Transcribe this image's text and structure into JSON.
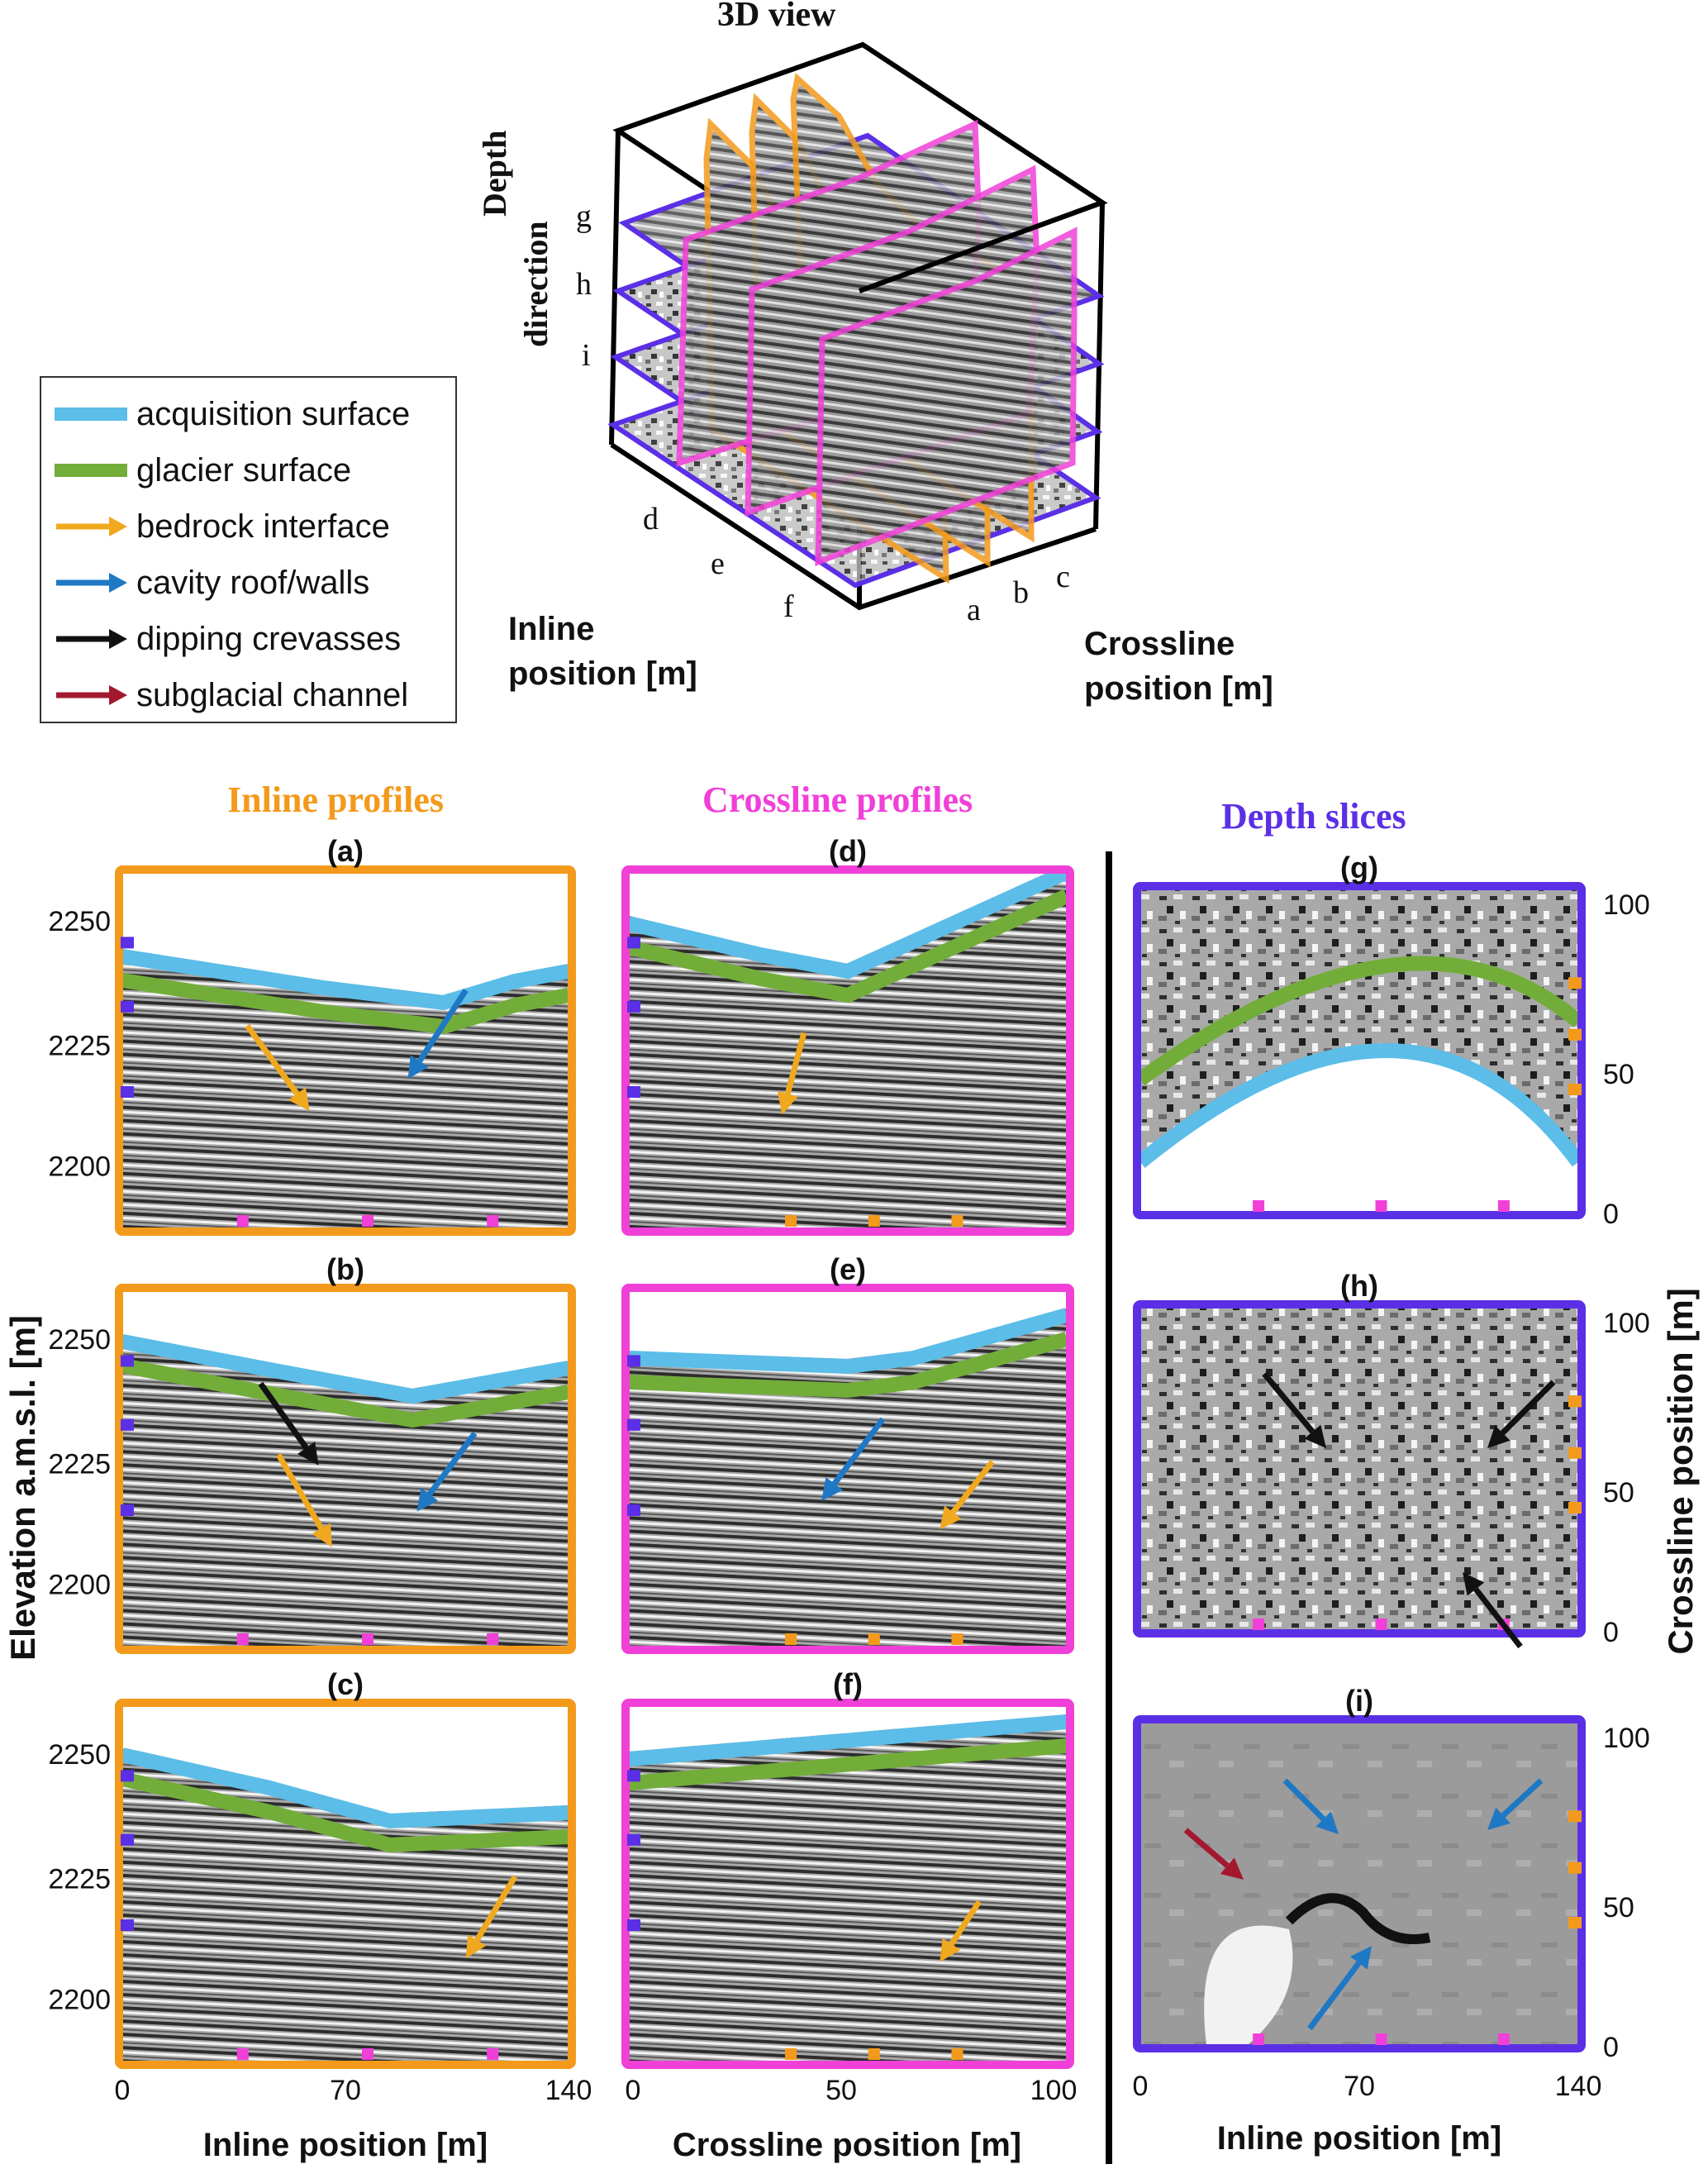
{
  "cube": {
    "title": "3D view",
    "depth_label": "Depth",
    "depth_label2": "direction",
    "slice_g": "g",
    "slice_h": "h",
    "slice_i": "i",
    "inline_d": "d",
    "inline_e": "e",
    "inline_f": "f",
    "cross_a": "a",
    "cross_b": "b",
    "cross_c": "c",
    "inline_axis_1": "Inline",
    "inline_axis_2": "position [m]",
    "cross_axis_1": "Crossline",
    "cross_axis_2": "position [m]"
  },
  "legend": {
    "items": [
      {
        "label": "acquisition surface",
        "color": "#5bbde8",
        "kind": "line"
      },
      {
        "label": "glacier surface",
        "color": "#72ad3a",
        "kind": "line"
      },
      {
        "label": "bedrock interface",
        "color": "#f0a81e",
        "kind": "arrow"
      },
      {
        "label": "cavity roof/walls",
        "color": "#1f78c4",
        "kind": "arrow"
      },
      {
        "label": "dipping crevasses",
        "color": "#111111",
        "kind": "arrow"
      },
      {
        "label": "subglacial channel",
        "color": "#a3182f",
        "kind": "arrow"
      }
    ]
  },
  "colors": {
    "inline": "#f39a1c",
    "crossline": "#f040d8",
    "depth": "#5b2fe6"
  },
  "sections": {
    "inline": "Inline profiles",
    "crossline": "Crossline profiles",
    "depth": "Depth slices"
  },
  "panels": {
    "a": "(a)",
    "b": "(b)",
    "c": "(c)",
    "d": "(d)",
    "e": "(e)",
    "f": "(f)",
    "g": "(g)",
    "h": "(h)",
    "i": "(i)"
  },
  "axes": {
    "elevation_label": "Elevation a.m.s.l. [m]",
    "elevation_ticks": [
      "2250",
      "2225",
      "2200"
    ],
    "inline_label": "Inline position [m]",
    "inline_ticks": [
      "0",
      "70",
      "140"
    ],
    "crossline_label": "Crossline position [m]",
    "crossline_ticks": [
      "0",
      "50",
      "100"
    ],
    "crossline_pos_label": "Crossline position [m]",
    "depth_y_ticks": [
      "100",
      "50",
      "0"
    ]
  }
}
